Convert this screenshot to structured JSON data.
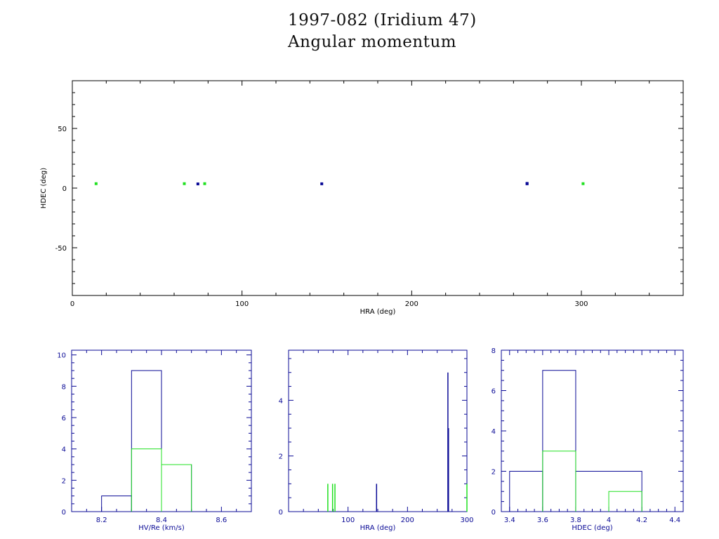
{
  "title": "1997-082 (Iridium 47)",
  "subtitle": "Angular momentum",
  "colors": {
    "blue": "#0a0a96",
    "green": "#20e020",
    "axis": "#000000"
  },
  "chart_data": [
    {
      "id": "main",
      "type": "scatter",
      "xlabel": "HRA (deg)",
      "ylabel": "HDEC (deg)",
      "xlim": [
        0,
        360
      ],
      "ylim": [
        -90,
        90
      ],
      "xticks": [
        0,
        100,
        200,
        300
      ],
      "yticks": [
        -50,
        0,
        50
      ],
      "series": [
        {
          "color": "blue",
          "points": [
            [
              74,
              3.5
            ],
            [
              147,
              3.6
            ],
            [
              268,
              3.6
            ],
            [
              268,
              3.9
            ]
          ]
        },
        {
          "color": "green",
          "points": [
            [
              14,
              3.7
            ],
            [
              66,
              3.7
            ],
            [
              78,
              3.7
            ],
            [
              301,
              3.7
            ]
          ]
        }
      ]
    },
    {
      "id": "hist_hv",
      "type": "bar",
      "xlabel": "HV/Re (km/s)",
      "xlim": [
        8.1,
        8.7
      ],
      "ylim": [
        0,
        10.3
      ],
      "xticks": [
        8.2,
        8.4,
        8.6
      ],
      "xticklabels": [
        "8.2",
        "8.4",
        "8.6"
      ],
      "yticks": [
        0,
        2,
        4,
        6,
        8,
        10
      ],
      "series": [
        {
          "color": "blue",
          "bins": [
            [
              8.2,
              8.3,
              1
            ],
            [
              8.3,
              8.4,
              9
            ],
            [
              8.4,
              8.5,
              3
            ]
          ]
        },
        {
          "color": "green",
          "bins": [
            [
              8.3,
              8.4,
              4
            ],
            [
              8.4,
              8.5,
              3
            ]
          ]
        }
      ]
    },
    {
      "id": "hist_hra",
      "type": "bar",
      "xlabel": "HRA (deg)",
      "xlim": [
        0,
        300
      ],
      "ylim": [
        0,
        5.8
      ],
      "xticks": [
        100,
        200,
        300
      ],
      "xticklabels": [
        "100",
        "200",
        "300"
      ],
      "yticks": [
        0,
        2,
        4
      ],
      "series": [
        {
          "color": "blue",
          "spikes": [
            [
              148,
              1
            ],
            [
              268,
              5
            ],
            [
              269,
              3
            ]
          ]
        },
        {
          "color": "green",
          "spikes": [
            [
              66,
              1
            ],
            [
              74,
              1
            ],
            [
              78,
              1
            ],
            [
              300,
              1
            ]
          ]
        }
      ]
    },
    {
      "id": "hist_hdec",
      "type": "bar",
      "xlabel": "HDEC (deg)",
      "xlim": [
        3.35,
        4.45
      ],
      "ylim": [
        0,
        8
      ],
      "xticks": [
        3.4,
        3.6,
        3.8,
        4,
        4.2,
        4.4
      ],
      "xticklabels": [
        "3.4",
        "3.6",
        "3.8",
        "4",
        "4.2",
        "4.4"
      ],
      "yticks": [
        0,
        2,
        4,
        6,
        8
      ],
      "series": [
        {
          "color": "blue",
          "bins": [
            [
              3.4,
              3.6,
              2
            ],
            [
              3.6,
              3.8,
              7
            ],
            [
              3.8,
              4.2,
              2
            ]
          ]
        },
        {
          "color": "green",
          "bins": [
            [
              3.6,
              3.8,
              3
            ],
            [
              4.0,
              4.2,
              1
            ]
          ]
        }
      ]
    }
  ]
}
